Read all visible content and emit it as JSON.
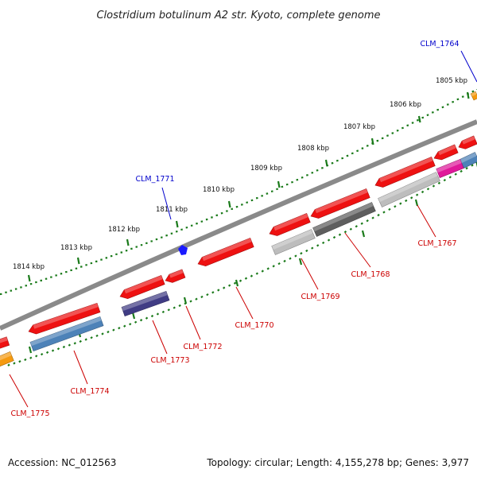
{
  "title": "Clostridium botulinum A2 str. Kyoto, complete genome",
  "footer": {
    "accession": "Accession: NC_012563",
    "topology": "Topology: circular; Length: 4,155,278 bp; Genes: 3,977"
  },
  "kbp_marks": [
    "1805 kbp",
    "1806 kbp",
    "1807 kbp",
    "1808 kbp",
    "1809 kbp",
    "1810 kbp",
    "1811 kbp",
    "1812 kbp",
    "1813 kbp",
    "1814 kbp"
  ],
  "gene_labels": {
    "clm1764": "CLM_1764",
    "clm1767": "CLM_1767",
    "clm1768": "CLM_1768",
    "clm1769": "CLM_1769",
    "clm1770": "CLM_1770",
    "clm1771": "CLM_1771",
    "clm1772": "CLM_1772",
    "clm1773": "CLM_1773",
    "clm1774": "CLM_1774",
    "clm1775": "CLM_1775"
  },
  "colors": {
    "backbone": "#808080",
    "ticks": "#1a7a1a",
    "forward_label": "#0000cc",
    "reverse_label": "#cc0000",
    "gene_red": "#ee1111",
    "gene_steelblue": "#4d82b8",
    "gene_darkblue": "#403c84",
    "gene_lightgray": "#bdbdbd",
    "gene_darkgray": "#5e5e5e",
    "gene_magenta": "#e0189a",
    "gene_orange": "#f59a10"
  }
}
